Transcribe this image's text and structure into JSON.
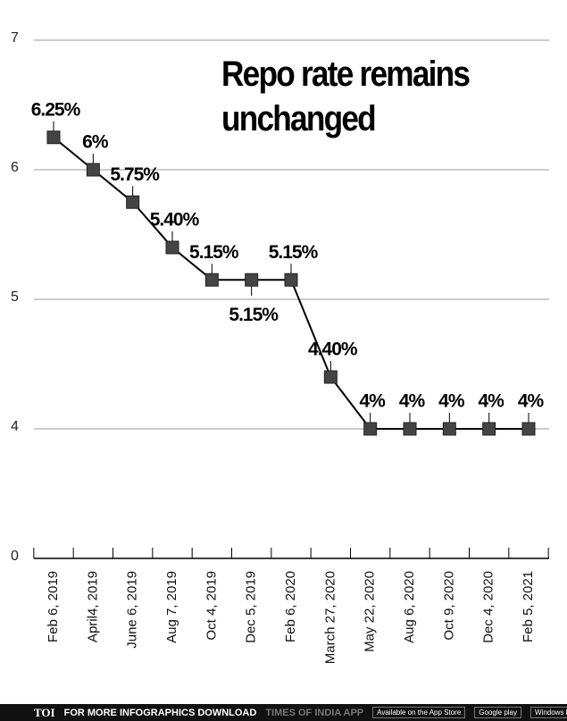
{
  "chart_data": {
    "type": "line",
    "title": "Repo rate remains unchanged",
    "categories": [
      "Feb 6, 2019",
      "April4, 2019",
      "June 6, 2019",
      "Aug 7, 2019",
      "Oct 4, 2019",
      "Dec 5, 2019",
      "Feb 6, 2020",
      "March 27, 2020",
      "May 22, 2020",
      "Aug 6, 2020",
      "Oct 9, 2020",
      "Dec 4, 2020",
      "Feb 5, 2021"
    ],
    "series": [
      {
        "name": "Repo rate",
        "color": "#000000",
        "values": [
          6.25,
          6,
          5.75,
          5.4,
          5.15,
          5.15,
          5.15,
          4.4,
          4,
          4,
          4,
          4,
          4
        ],
        "value_labels": [
          "6.25%",
          "6%",
          "5.75%",
          "5.40%",
          "5.15%",
          "5.15%",
          "5.15%",
          "4.40%",
          "4%",
          "4%",
          "4%",
          "4%",
          "4%"
        ]
      }
    ],
    "marker_color": "#444444",
    "ylim": [
      0,
      7
    ],
    "ybreak": [
      0,
      4
    ],
    "yticks": [
      0,
      4,
      5,
      6,
      7
    ],
    "grid": true
  },
  "footer": {
    "logo": "TOI",
    "text": "FOR MORE  INFOGRAPHICS DOWNLOAD",
    "app": "TIMES OF INDIA  APP",
    "badges": [
      "Available on the App Store",
      "Google play",
      "Windows Phone"
    ]
  }
}
